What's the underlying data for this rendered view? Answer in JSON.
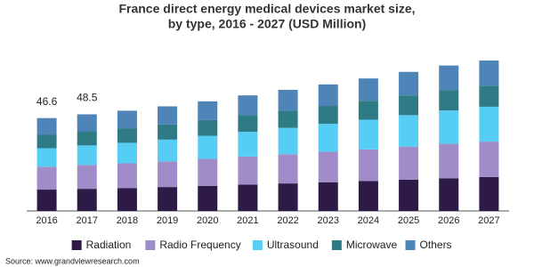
{
  "chart_data": {
    "type": "stacked-bar",
    "title": [
      "France direct energy medical devices market size,",
      "by type, 2016 - 2027 (USD Million)"
    ],
    "categories": [
      "2016",
      "2017",
      "2018",
      "2019",
      "2020",
      "2021",
      "2022",
      "2023",
      "2024",
      "2025",
      "2026",
      "2027"
    ],
    "series": [
      {
        "name": "Radiation",
        "color": "#2e1a47",
        "values": [
          10.7,
          11.1,
          11.5,
          12.0,
          12.6,
          13.2,
          13.8,
          14.4,
          15.0,
          15.7,
          16.4,
          17.0
        ]
      },
      {
        "name": "Radio Frequency",
        "color": "#a08cc8",
        "values": [
          11.5,
          12.0,
          12.4,
          12.9,
          13.5,
          14.1,
          14.7,
          15.3,
          15.9,
          16.6,
          17.3,
          17.8
        ]
      },
      {
        "name": "Ultrasound",
        "color": "#55cdf5",
        "values": [
          9.3,
          9.8,
          10.3,
          10.9,
          11.6,
          12.4,
          13.2,
          14.0,
          14.9,
          15.8,
          16.7,
          17.5
        ]
      },
      {
        "name": "Microwave",
        "color": "#2e7a85",
        "values": [
          6.7,
          7.1,
          7.3,
          7.6,
          7.9,
          8.3,
          8.7,
          9.0,
          9.5,
          9.9,
          10.3,
          10.6
        ]
      },
      {
        "name": "Others",
        "color": "#4f84b8",
        "values": [
          8.4,
          8.5,
          8.8,
          9.1,
          9.4,
          10.0,
          10.4,
          10.8,
          11.2,
          11.8,
          12.3,
          12.6
        ]
      }
    ],
    "totals": [
      46.6,
      48.5,
      null,
      null,
      null,
      null,
      null,
      null,
      null,
      null,
      null,
      null
    ],
    "source": "Source: www.grandviewresearch.com"
  }
}
